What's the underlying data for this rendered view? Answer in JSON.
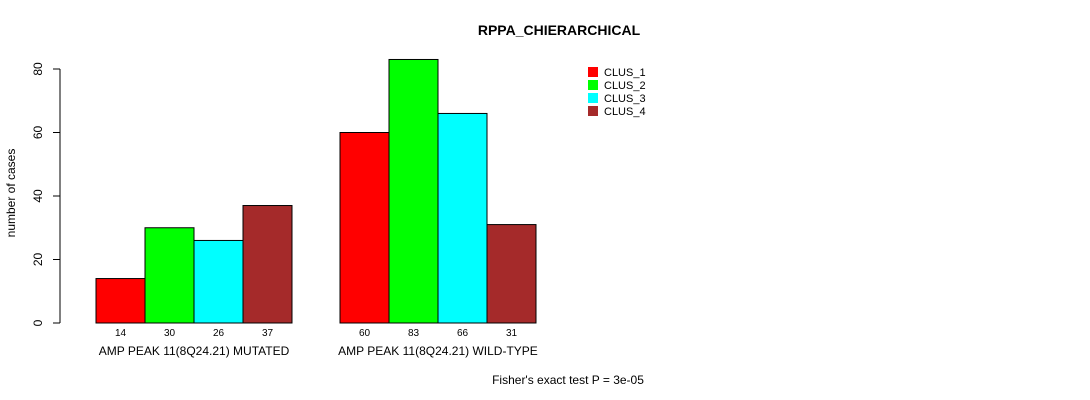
{
  "chart_data": {
    "type": "bar",
    "title": "RPPA_CHIERARCHICAL",
    "ylabel": "number of cases",
    "xlabel": "",
    "ylim": [
      0,
      80
    ],
    "yticks": [
      0,
      20,
      40,
      60,
      80
    ],
    "groups": [
      "AMP PEAK 11(8Q24.21) MUTATED",
      "AMP PEAK 11(8Q24.21) WILD-TYPE"
    ],
    "series": [
      {
        "name": "CLUS_1",
        "color": "#ff0000",
        "values": [
          14,
          60
        ]
      },
      {
        "name": "CLUS_2",
        "color": "#00ff00",
        "values": [
          30,
          83
        ]
      },
      {
        "name": "CLUS_3",
        "color": "#00ffff",
        "values": [
          26,
          66
        ]
      },
      {
        "name": "CLUS_4",
        "color": "#a52a2a",
        "values": [
          37,
          31
        ]
      }
    ],
    "legend_position": "top-right",
    "footnote": "Fisher's exact test P = 3e-05"
  }
}
